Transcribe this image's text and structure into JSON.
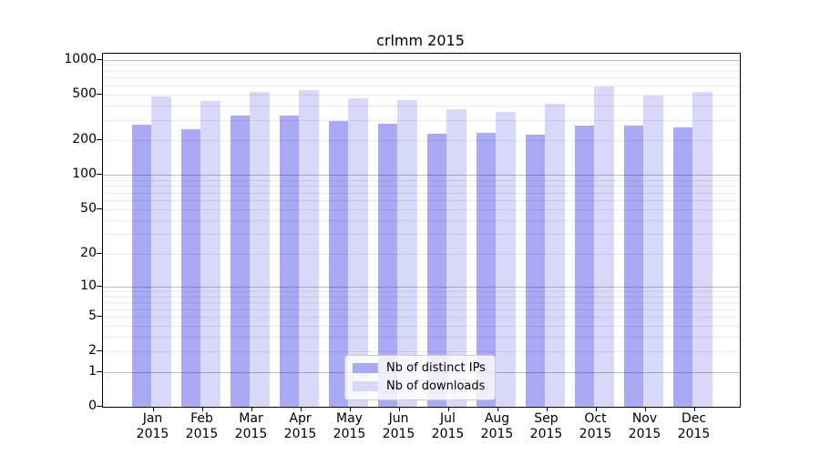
{
  "title": "crlmm 2015",
  "legend": {
    "items": [
      {
        "label": "Nb of distinct IPs",
        "color": "#a9a9f6"
      },
      {
        "label": "Nb of downloads",
        "color": "#d8d8f8"
      }
    ],
    "position": "lower center"
  },
  "colors": {
    "distinct_ips": "#a9a9f6",
    "downloads": "#d8d8f8",
    "grid_major": "#bfbfbf",
    "grid_minor": "#ebebeb",
    "axis": "#000000",
    "background": "#ffffff"
  },
  "chart_data": {
    "type": "bar",
    "title": "crlmm 2015",
    "categories": [
      "Jan 2015",
      "Feb 2015",
      "Mar 2015",
      "Apr 2015",
      "May 2015",
      "Jun 2015",
      "Jul 2015",
      "Aug 2015",
      "Sep 2015",
      "Oct 2015",
      "Nov 2015",
      "Dec 2015"
    ],
    "series": [
      {
        "name": "Nb of distinct IPs",
        "color": "#a9a9f6",
        "values": [
          275,
          250,
          330,
          330,
          292,
          281,
          230,
          232,
          225,
          270,
          268,
          261
        ]
      },
      {
        "name": "Nb of downloads",
        "color": "#d8d8f8",
        "values": [
          480,
          438,
          530,
          550,
          462,
          450,
          370,
          352,
          415,
          590,
          492,
          522
        ]
      }
    ],
    "xlabel": "",
    "ylabel": "",
    "y_scale": "log1p",
    "y_ticks": [
      0,
      1,
      2,
      5,
      10,
      20,
      50,
      100,
      200,
      500,
      1000
    ],
    "y_axis_max": 1125,
    "grid": "horizontal, minor lines at 2-9 per decade, drawn over bars",
    "legend_position": "lower center"
  }
}
